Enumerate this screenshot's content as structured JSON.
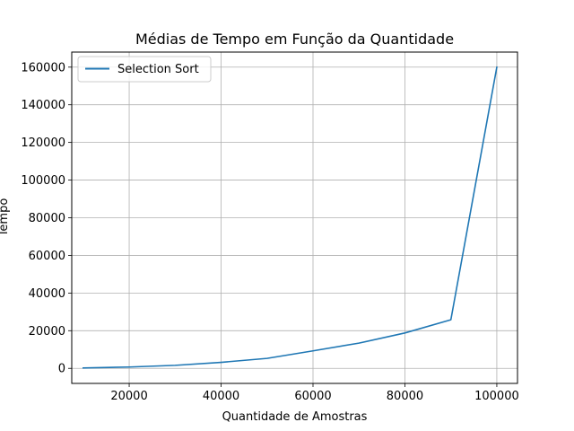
{
  "chart_data": {
    "type": "line",
    "title": "Médias de Tempo em Função da Quantidade",
    "xlabel": "Quantidade de Amostras",
    "ylabel": "Tempo",
    "xlim": [
      7500,
      104500
    ],
    "ylim": [
      -8000,
      168000
    ],
    "xticks": [
      20000,
      40000,
      60000,
      80000,
      100000
    ],
    "yticks": [
      0,
      20000,
      40000,
      60000,
      80000,
      100000,
      120000,
      140000,
      160000
    ],
    "grid": true,
    "legend_position": "top-left",
    "series": [
      {
        "name": "Selection Sort",
        "color": "#1f77b4",
        "x": [
          10000,
          20000,
          30000,
          40000,
          50000,
          60000,
          70000,
          80000,
          90000,
          100000
        ],
        "y": [
          200,
          700,
          1600,
          3200,
          5300,
          9300,
          13400,
          18800,
          25800,
          160000
        ]
      }
    ]
  }
}
